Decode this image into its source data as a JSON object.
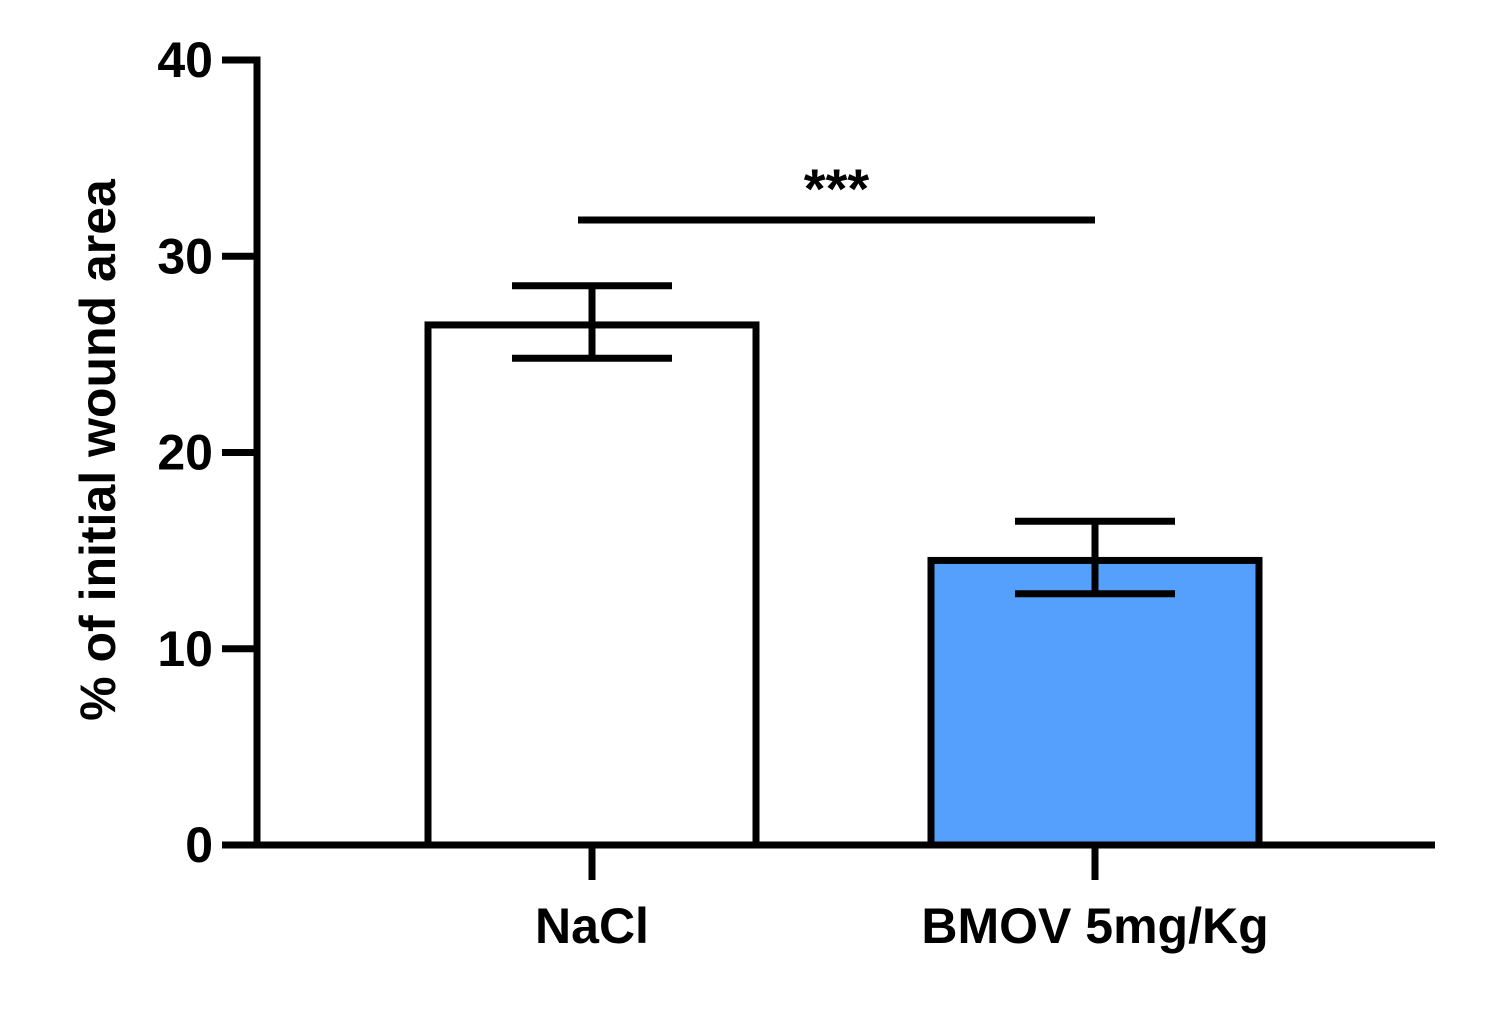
{
  "chart_data": {
    "type": "bar",
    "categories": [
      "NaCl",
      "BMOV 5mg/Kg"
    ],
    "values": [
      26.5,
      14.5
    ],
    "error_bars": [
      {
        "low": 24.8,
        "high": 28.5
      },
      {
        "low": 12.8,
        "high": 16.5
      }
    ],
    "bar_colors": [
      "#ffffff",
      "#55a0fd"
    ],
    "title": "",
    "xlabel": "",
    "ylabel": "% of initial wound area",
    "ylim": [
      0,
      40
    ],
    "yticks": [
      "0",
      "10",
      "20",
      "30",
      "40"
    ],
    "grid": false,
    "significance": {
      "label": "***",
      "between": [
        0,
        1
      ]
    }
  }
}
